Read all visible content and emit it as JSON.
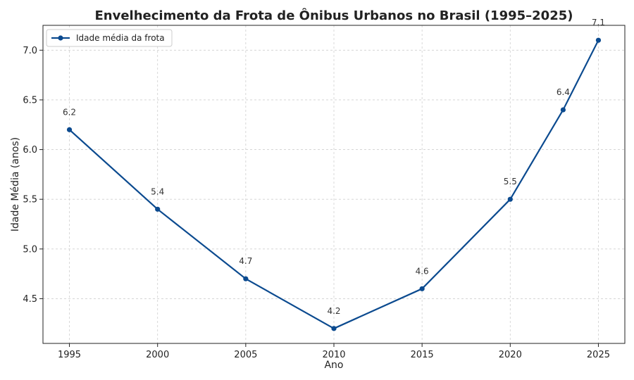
{
  "chart_data": {
    "type": "line",
    "title": "Envelhecimento da Frota de Ônibus Urbanos no Brasil (1995–2025)",
    "xlabel": "Ano",
    "ylabel": "Idade Média (anos)",
    "x": [
      1995,
      2000,
      2005,
      2010,
      2015,
      2020,
      2023,
      2025
    ],
    "xlim": [
      1993.5,
      2026.5
    ],
    "ylim": [
      4.05,
      7.25
    ],
    "xticks": [
      1995,
      2000,
      2005,
      2010,
      2015,
      2020,
      2025
    ],
    "yticks": [
      4.5,
      5.0,
      5.5,
      6.0,
      6.5,
      7.0
    ],
    "xtick_labels": [
      "1995",
      "2000",
      "2005",
      "2010",
      "2015",
      "2020",
      "2025"
    ],
    "ytick_labels": [
      "4.5",
      "5.0",
      "5.5",
      "6.0",
      "6.5",
      "7.0"
    ],
    "series": [
      {
        "name": "Idade média da frota",
        "values": [
          6.2,
          5.4,
          4.7,
          4.2,
          4.6,
          5.5,
          6.4,
          7.1
        ],
        "data_labels": [
          "6.2",
          "5.4",
          "4.7",
          "4.2",
          "4.6",
          "5.5",
          "6.4",
          "7.1"
        ],
        "color": "#0b4a8f",
        "marker": "circle"
      }
    ],
    "grid": true,
    "legend_position": "top-left"
  }
}
